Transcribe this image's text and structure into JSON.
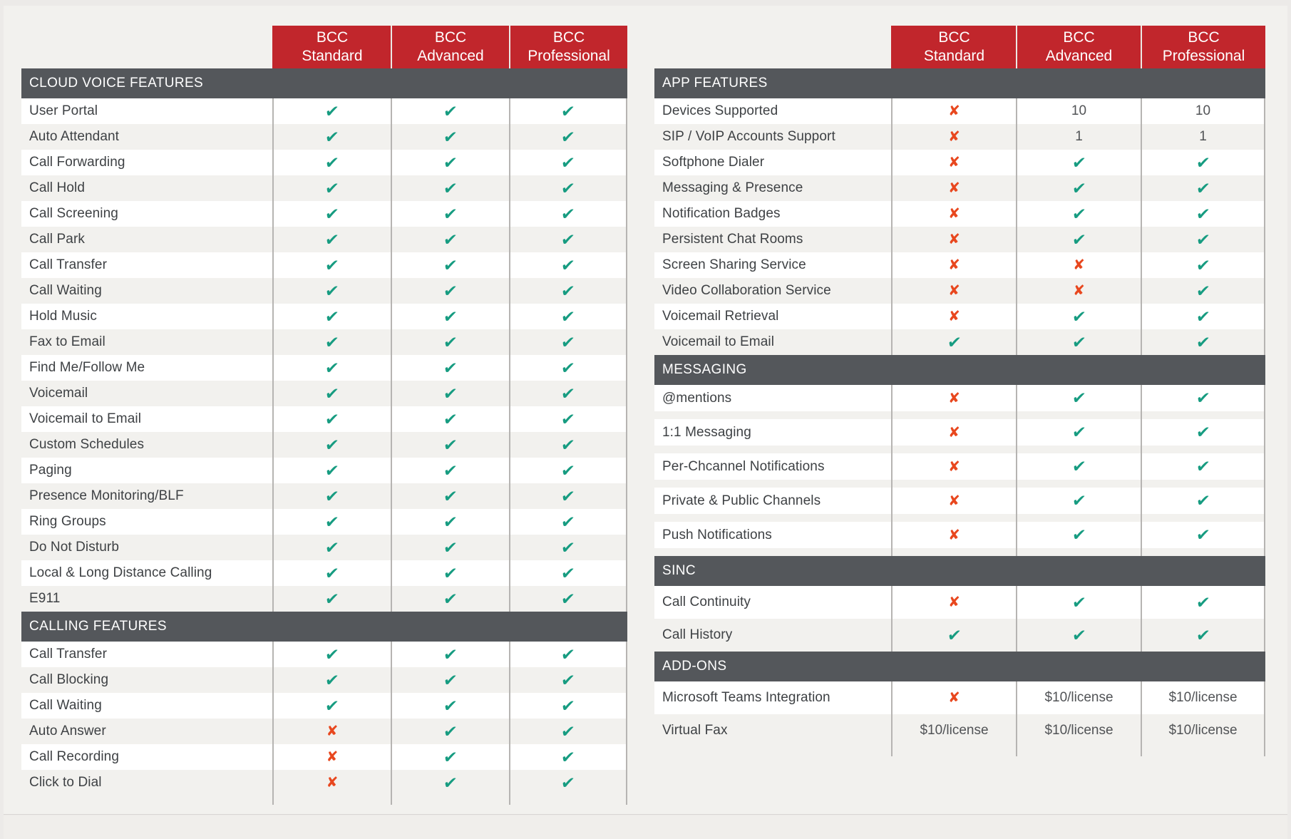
{
  "icons": {
    "check": "✔",
    "cross": "✘"
  },
  "colors": {
    "header_red": "#c1262c",
    "section_gray": "#54575b",
    "check_green": "#179c81",
    "cross_orange": "#e8471e"
  },
  "plans": [
    "BCC\nStandard",
    "BCC\nAdvanced",
    "BCC\nProfessional"
  ],
  "left_table": {
    "sections": [
      {
        "title": "CLOUD VOICE FEATURES",
        "rows": [
          {
            "feature": "User Portal",
            "values": [
              "check",
              "check",
              "check"
            ]
          },
          {
            "feature": "Auto Attendant",
            "values": [
              "check",
              "check",
              "check"
            ]
          },
          {
            "feature": "Call Forwarding",
            "values": [
              "check",
              "check",
              "check"
            ]
          },
          {
            "feature": "Call Hold",
            "values": [
              "check",
              "check",
              "check"
            ]
          },
          {
            "feature": "Call Screening",
            "values": [
              "check",
              "check",
              "check"
            ]
          },
          {
            "feature": "Call Park",
            "values": [
              "check",
              "check",
              "check"
            ]
          },
          {
            "feature": "Call Transfer",
            "values": [
              "check",
              "check",
              "check"
            ]
          },
          {
            "feature": "Call Waiting",
            "values": [
              "check",
              "check",
              "check"
            ]
          },
          {
            "feature": "Hold Music",
            "values": [
              "check",
              "check",
              "check"
            ]
          },
          {
            "feature": "Fax to Email",
            "values": [
              "check",
              "check",
              "check"
            ]
          },
          {
            "feature": "Find Me/Follow Me",
            "values": [
              "check",
              "check",
              "check"
            ]
          },
          {
            "feature": "Voicemail",
            "values": [
              "check",
              "check",
              "check"
            ]
          },
          {
            "feature": "Voicemail to Email",
            "values": [
              "check",
              "check",
              "check"
            ]
          },
          {
            "feature": "Custom Schedules",
            "values": [
              "check",
              "check",
              "check"
            ]
          },
          {
            "feature": "Paging",
            "values": [
              "check",
              "check",
              "check"
            ]
          },
          {
            "feature": "Presence Monitoring/BLF",
            "values": [
              "check",
              "check",
              "check"
            ]
          },
          {
            "feature": "Ring Groups",
            "values": [
              "check",
              "check",
              "check"
            ]
          },
          {
            "feature": "Do Not Disturb",
            "values": [
              "check",
              "check",
              "check"
            ]
          },
          {
            "feature": "Local & Long Distance Calling",
            "values": [
              "check",
              "check",
              "check"
            ]
          },
          {
            "feature": "E911",
            "values": [
              "check",
              "check",
              "check"
            ]
          }
        ]
      },
      {
        "title": "CALLING FEATURES",
        "rows": [
          {
            "feature": "Call Transfer",
            "values": [
              "check",
              "check",
              "check"
            ]
          },
          {
            "feature": "Call Blocking",
            "values": [
              "check",
              "check",
              "check"
            ]
          },
          {
            "feature": "Call Waiting",
            "values": [
              "check",
              "check",
              "check"
            ]
          },
          {
            "feature": "Auto Answer",
            "values": [
              "cross",
              "check",
              "check"
            ]
          },
          {
            "feature": "Call Recording",
            "values": [
              "cross",
              "check",
              "check"
            ]
          },
          {
            "feature": "Click to Dial",
            "values": [
              "cross",
              "check",
              "check"
            ]
          }
        ]
      }
    ]
  },
  "right_table": {
    "sections": [
      {
        "title": "APP FEATURES",
        "rows": [
          {
            "feature": "Devices Supported",
            "values": [
              "cross",
              "10",
              "10"
            ]
          },
          {
            "feature": "SIP / VoIP Accounts Support",
            "values": [
              "cross",
              "1",
              "1"
            ]
          },
          {
            "feature": "Softphone Dialer",
            "values": [
              "cross",
              "check",
              "check"
            ]
          },
          {
            "feature": "Messaging & Presence",
            "values": [
              "cross",
              "check",
              "check"
            ]
          },
          {
            "feature": "Notification Badges",
            "values": [
              "cross",
              "check",
              "check"
            ]
          },
          {
            "feature": "Persistent Chat Rooms",
            "values": [
              "cross",
              "check",
              "check"
            ]
          },
          {
            "feature": "Screen Sharing Service",
            "values": [
              "cross",
              "cross",
              "check"
            ]
          },
          {
            "feature": "Video Collaboration Service",
            "values": [
              "cross",
              "cross",
              "check"
            ]
          },
          {
            "feature": "Voicemail Retrieval",
            "values": [
              "cross",
              "check",
              "check"
            ]
          },
          {
            "feature": "Voicemail to Email",
            "values": [
              "check",
              "check",
              "check"
            ]
          }
        ]
      },
      {
        "title": "MESSAGING",
        "rows": [
          {
            "feature": "@mentions",
            "values": [
              "cross",
              "check",
              "check"
            ]
          },
          {
            "feature": "1:1 Messaging",
            "values": [
              "cross",
              "check",
              "check"
            ]
          },
          {
            "feature": "Per-Chcannel Notifications",
            "values": [
              "cross",
              "check",
              "check"
            ]
          },
          {
            "feature": "Private & Public Channels",
            "values": [
              "cross",
              "check",
              "check"
            ]
          },
          {
            "feature": "Push Notifications",
            "values": [
              "cross",
              "check",
              "check"
            ]
          }
        ]
      },
      {
        "title": "SINC",
        "rows": [
          {
            "feature": "Call Continuity",
            "values": [
              "cross",
              "check",
              "check"
            ]
          },
          {
            "feature": "Call History",
            "values": [
              "check",
              "check",
              "check"
            ]
          }
        ]
      },
      {
        "title": "ADD-ONS",
        "rows": [
          {
            "feature": "Microsoft Teams Integration",
            "values": [
              "cross",
              "$10/license",
              "$10/license"
            ]
          },
          {
            "feature": "Virtual Fax",
            "values": [
              "$10/license",
              "$10/license",
              "$10/license"
            ]
          }
        ]
      }
    ]
  }
}
